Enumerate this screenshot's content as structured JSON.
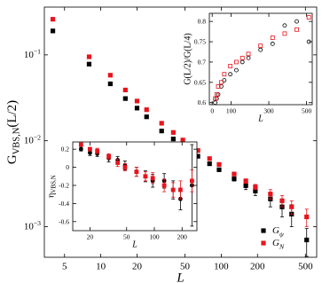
{
  "chart_data": [
    {
      "type": "scatter",
      "xlabel": "L",
      "ylabel": [
        "G",
        "VBS,N",
        "(L/2)"
      ],
      "xscale": "log",
      "yscale": "log",
      "xlim": [
        3.4,
        620
      ],
      "ylim": [
        0.00044,
        0.36
      ],
      "xticks": [
        5,
        10,
        20,
        50,
        100,
        200,
        500
      ],
      "yticks": [
        {
          "value": 0.001,
          "label": [
            "10",
            "−3"
          ]
        },
        {
          "value": 0.01,
          "label": [
            "10",
            "−2"
          ]
        },
        {
          "value": 0.1,
          "label": [
            "10",
            "−1"
          ]
        }
      ],
      "legend": "lower right",
      "x": [
        4,
        8,
        12,
        16,
        20,
        24,
        32,
        40,
        48,
        64,
        80,
        96,
        128,
        160,
        192,
        256,
        320,
        384,
        512
      ],
      "series": [
        {
          "name": [
            "G",
            "ψ"
          ],
          "color": "#000000",
          "marker": "square",
          "filled": true,
          "values": [
            0.19,
            0.078,
            0.046,
            0.031,
            0.024,
            0.019,
            0.013,
            0.0105,
            0.0088,
            0.0066,
            0.0054,
            0.0046,
            0.0036,
            0.003,
            0.0026,
            0.0021,
            0.0017,
            0.0014,
            0.0007
          ],
          "errors": [
            null,
            null,
            null,
            null,
            null,
            null,
            null,
            null,
            null,
            null,
            null,
            null,
            0.0002,
            0.0003,
            0.0003,
            0.0004,
            0.0004,
            0.0004,
            0.00025
          ]
        },
        {
          "name": [
            "G",
            "N"
          ],
          "color": "#e8141c",
          "marker": "square",
          "filled": true,
          "values": [
            0.26,
            0.095,
            0.058,
            0.039,
            0.029,
            0.023,
            0.016,
            0.0125,
            0.0102,
            0.0077,
            0.0062,
            0.0053,
            0.0041,
            0.0034,
            0.0029,
            0.0024,
            0.002,
            0.0017,
            0.0013
          ],
          "errors": [
            null,
            null,
            null,
            null,
            null,
            null,
            null,
            null,
            null,
            null,
            null,
            null,
            0.0002,
            0.0002,
            0.0002,
            0.0003,
            0.0003,
            0.0003,
            0.0003
          ]
        }
      ]
    },
    {
      "type": "scatter",
      "xlabel": "L",
      "ylabel": [
        "G(L/2)/G(L/4)"
      ],
      "xscale": "linear",
      "yscale": "linear",
      "xlim": [
        -15,
        530
      ],
      "ylim": [
        0.595,
        0.82
      ],
      "xticks": [
        0,
        100,
        300,
        500
      ],
      "yticks": [
        0.6,
        0.65,
        0.7,
        0.75,
        0.8
      ],
      "x": [
        16,
        24,
        32,
        48,
        64,
        96,
        128,
        160,
        192,
        256,
        320,
        384,
        448,
        512
      ],
      "series": [
        {
          "color": "#000000",
          "marker": "circle",
          "filled": false,
          "values": [
            0.6,
            0.61,
            0.62,
            0.64,
            0.655,
            0.67,
            0.68,
            0.7,
            0.71,
            0.73,
            0.745,
            0.79,
            0.8,
            0.75
          ]
        },
        {
          "color": "#e8141c",
          "marker": "square",
          "filled": false,
          "values": [
            0.61,
            0.62,
            0.64,
            0.65,
            0.67,
            0.69,
            0.7,
            0.71,
            0.72,
            0.74,
            0.76,
            0.77,
            0.78,
            0.81
          ]
        }
      ]
    },
    {
      "type": "scatter",
      "xlabel": "L",
      "ylabel": [
        "η",
        "VBS,N"
      ],
      "xscale": "log",
      "yscale": "linear",
      "xlim": [
        13,
        290
      ],
      "ylim": [
        -0.7,
        0.28
      ],
      "xticks": [
        20,
        50,
        100,
        200
      ],
      "yticks": [
        -0.6,
        -0.4,
        -0.2,
        0,
        0.2
      ],
      "x": [
        16,
        20,
        24,
        32,
        40,
        48,
        64,
        80,
        96,
        128,
        160,
        192,
        256
      ],
      "series": [
        {
          "color": "#000000",
          "marker": "circle",
          "filled": true,
          "values": [
            0.2,
            0.16,
            0.15,
            0.1,
            0.08,
            0.02,
            -0.05,
            -0.1,
            -0.15,
            -0.15,
            -0.25,
            -0.35,
            -0.2
          ],
          "errors": [
            0.02,
            0.03,
            0.03,
            0.04,
            0.04,
            0.05,
            0.05,
            0.06,
            0.07,
            0.08,
            0.1,
            0.12,
            0.45
          ]
        },
        {
          "color": "#e8141c",
          "marker": "square",
          "filled": true,
          "values": [
            0.25,
            0.2,
            0.18,
            0.12,
            0.05,
            0.0,
            -0.05,
            -0.1,
            -0.12,
            -0.2,
            -0.25,
            -0.25,
            -0.15
          ],
          "errors": [
            0.02,
            0.02,
            0.03,
            0.03,
            0.04,
            0.04,
            0.05,
            0.05,
            0.06,
            0.07,
            0.08,
            0.1,
            0.12
          ]
        }
      ]
    }
  ]
}
